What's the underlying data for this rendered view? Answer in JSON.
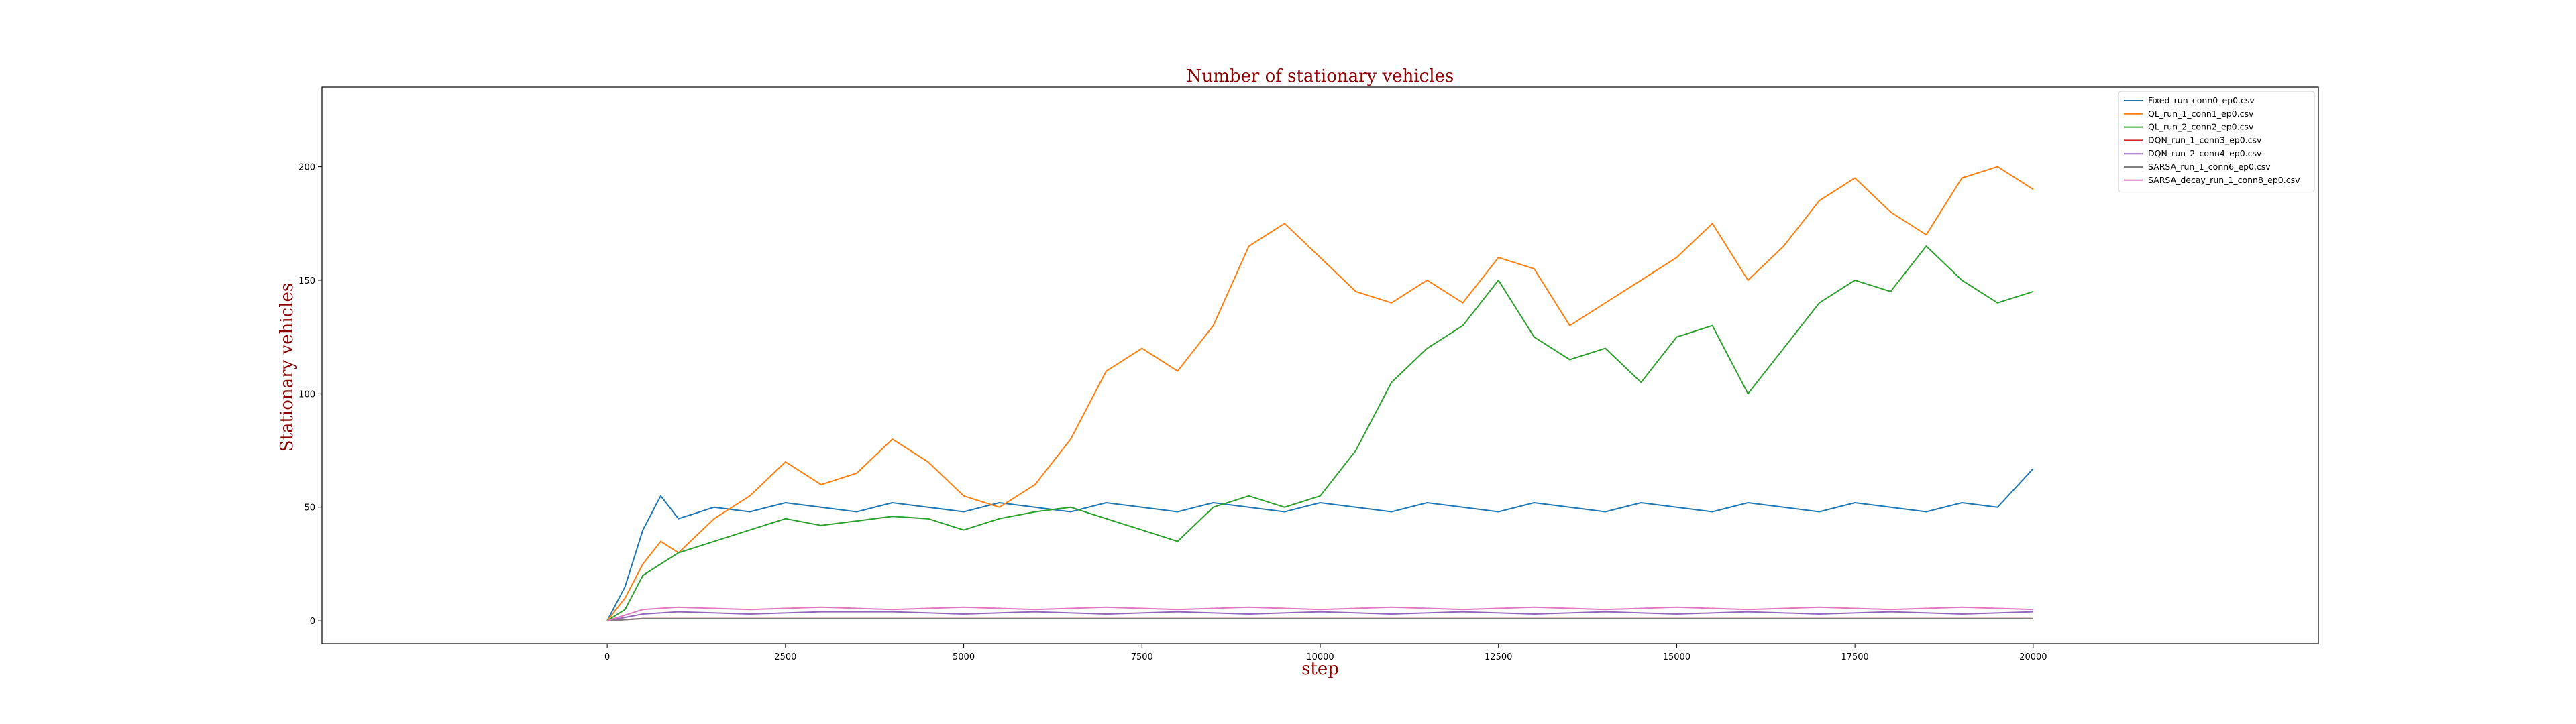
{
  "chart_data": {
    "type": "line",
    "title": "Number of stationary vehicles",
    "xlabel": "step",
    "ylabel": "Stationary vehicles",
    "xlim": [
      -4000,
      24000
    ],
    "ylim": [
      -10,
      235
    ],
    "xticks": [
      0,
      2500,
      5000,
      7500,
      10000,
      12500,
      15000,
      17500,
      20000
    ],
    "xtick_labels": [
      "0",
      "2500",
      "5000",
      "7500",
      "10000",
      "12500",
      "15000",
      "17500",
      "20000"
    ],
    "yticks": [
      0,
      50,
      100,
      150,
      200
    ],
    "ytick_labels": [
      "0",
      "50",
      "100",
      "150",
      "200"
    ],
    "grid": false,
    "legend_position": "top-right",
    "series": [
      {
        "name": "Fixed_run_conn0_ep0.csv",
        "color": "#1f77b4",
        "x": [
          0,
          250,
          500,
          750,
          1000,
          1500,
          2000,
          2500,
          3000,
          3500,
          4000,
          4500,
          5000,
          5500,
          6000,
          6500,
          7000,
          7500,
          8000,
          8500,
          9000,
          9500,
          10000,
          10500,
          11000,
          11500,
          12000,
          12500,
          13000,
          13500,
          14000,
          14500,
          15000,
          15500,
          16000,
          16500,
          17000,
          17500,
          18000,
          18500,
          19000,
          19500,
          20000
        ],
        "y": [
          0,
          15,
          40,
          55,
          45,
          50,
          48,
          52,
          50,
          48,
          52,
          50,
          48,
          52,
          50,
          48,
          52,
          50,
          48,
          52,
          50,
          48,
          52,
          50,
          48,
          52,
          50,
          48,
          52,
          50,
          48,
          52,
          50,
          48,
          52,
          50,
          48,
          52,
          50,
          48,
          52,
          50,
          67
        ]
      },
      {
        "name": "QL_run_1_conn1_ep0.csv",
        "color": "#ff7f0e",
        "x": [
          0,
          250,
          500,
          750,
          1000,
          1500,
          2000,
          2500,
          3000,
          3500,
          4000,
          4500,
          5000,
          5500,
          6000,
          6500,
          7000,
          7500,
          8000,
          8500,
          9000,
          9500,
          10000,
          10500,
          11000,
          11500,
          12000,
          12500,
          13000,
          13500,
          14000,
          14500,
          15000,
          15500,
          16000,
          16500,
          17000,
          17500,
          18000,
          18500,
          19000,
          19500,
          20000
        ],
        "y": [
          0,
          10,
          25,
          35,
          30,
          45,
          55,
          70,
          60,
          65,
          80,
          70,
          55,
          50,
          60,
          80,
          110,
          120,
          110,
          130,
          165,
          175,
          160,
          145,
          140,
          150,
          140,
          160,
          155,
          130,
          140,
          150,
          160,
          175,
          150,
          165,
          185,
          195,
          180,
          170,
          195,
          200,
          190
        ]
      },
      {
        "name": "QL_run_2_conn2_ep0.csv",
        "color": "#2ca02c",
        "x": [
          0,
          250,
          500,
          750,
          1000,
          1500,
          2000,
          2500,
          3000,
          3500,
          4000,
          4500,
          5000,
          5500,
          6000,
          6500,
          7000,
          7500,
          8000,
          8500,
          9000,
          9500,
          10000,
          10500,
          11000,
          11500,
          12000,
          12500,
          13000,
          13500,
          14000,
          14500,
          15000,
          15500,
          16000,
          16500,
          17000,
          17500,
          18000,
          18500,
          19000,
          19500,
          20000
        ],
        "y": [
          0,
          5,
          20,
          25,
          30,
          35,
          40,
          45,
          42,
          44,
          46,
          45,
          40,
          45,
          48,
          50,
          45,
          40,
          35,
          50,
          55,
          50,
          55,
          75,
          105,
          120,
          130,
          150,
          125,
          115,
          120,
          105,
          125,
          130,
          100,
          120,
          140,
          150,
          145,
          165,
          150,
          140,
          145
        ]
      },
      {
        "name": "DQN_run_1_conn3_ep0.csv",
        "color": "#d62728",
        "x": [
          0,
          500,
          1000,
          2000,
          3000,
          4000,
          5000,
          6000,
          7000,
          8000,
          9000,
          10000,
          11000,
          12000,
          13000,
          14000,
          15000,
          16000,
          17000,
          18000,
          19000,
          20000
        ],
        "y": [
          0,
          1,
          1,
          1,
          1,
          1,
          1,
          1,
          1,
          1,
          1,
          1,
          1,
          1,
          1,
          1,
          1,
          1,
          1,
          1,
          1,
          1
        ]
      },
      {
        "name": "DQN_run_2_conn4_ep0.csv",
        "color": "#9467bd",
        "x": [
          0,
          500,
          1000,
          2000,
          3000,
          4000,
          5000,
          6000,
          7000,
          8000,
          9000,
          10000,
          11000,
          12000,
          13000,
          14000,
          15000,
          16000,
          17000,
          18000,
          19000,
          20000
        ],
        "y": [
          0,
          3,
          4,
          3,
          4,
          4,
          3,
          4,
          3,
          4,
          3,
          4,
          3,
          4,
          3,
          4,
          3,
          4,
          3,
          4,
          3,
          4
        ]
      },
      {
        "name": "SARSA_run_1_conn6_ep0.csv",
        "color": "#7f7f7f",
        "x": [
          0,
          500,
          1000,
          2000,
          3000,
          4000,
          5000,
          6000,
          7000,
          8000,
          9000,
          10000,
          11000,
          12000,
          13000,
          14000,
          15000,
          16000,
          17000,
          18000,
          19000,
          20000
        ],
        "y": [
          0,
          1,
          1,
          1,
          1,
          1,
          1,
          1,
          1,
          1,
          1,
          1,
          1,
          1,
          1,
          1,
          1,
          1,
          1,
          1,
          1,
          1
        ]
      },
      {
        "name": "SARSA_decay_run_1_conn8_ep0.csv",
        "color": "#e377c2",
        "x": [
          0,
          500,
          1000,
          2000,
          3000,
          4000,
          5000,
          6000,
          7000,
          8000,
          9000,
          10000,
          11000,
          12000,
          13000,
          14000,
          15000,
          16000,
          17000,
          18000,
          19000,
          20000
        ],
        "y": [
          0,
          5,
          6,
          5,
          6,
          5,
          6,
          5,
          6,
          5,
          6,
          5,
          6,
          5,
          6,
          5,
          6,
          5,
          6,
          5,
          6,
          5
        ]
      }
    ]
  }
}
